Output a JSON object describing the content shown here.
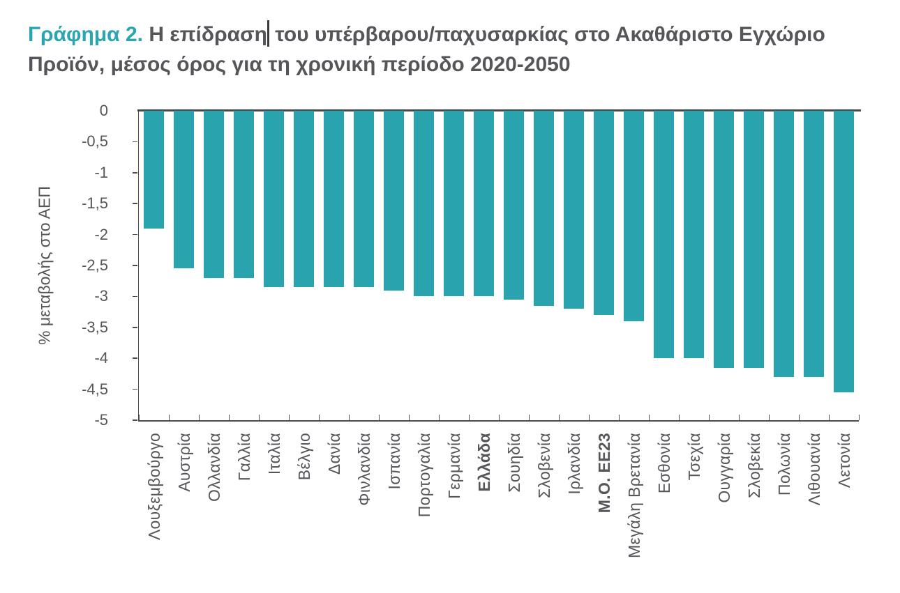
{
  "title": {
    "prefix": "Γράφημα 2.",
    "line1_before_caret": "Η επίδραση",
    "line1_after_caret": "του υπέρβαρου/παχυσαρκίας στο Ακαθάριστο Εγχώριο",
    "line2": "Προϊόν, μέσος όρος για τη χρονική περίοδο 2020-2050"
  },
  "colors": {
    "bar": "#29a4ae",
    "title_accent": "#2ba6b0",
    "text": "#55565a",
    "axis": "#4b4c4e"
  },
  "chart_data": {
    "type": "bar",
    "title": "Γράφημα 2. Η επίδραση του υπέρβαρου/παχυσαρκίας στο Ακαθάριστο Εγχώριο Προϊόν, μέσος όρος για τη χρονική περίοδο 2020-2050",
    "xlabel": "",
    "ylabel": "% μεταβολής στο ΑΕΠ",
    "ylim": [
      -5,
      0
    ],
    "y_tick_step": 0.5,
    "y_tick_labels": [
      "0",
      "-0,5",
      "-1",
      "-1,5",
      "-2",
      "-2,5",
      "-3",
      "-3,5",
      "-4",
      "-4,5",
      "-5"
    ],
    "grid": false,
    "legend": false,
    "bar_color": "#29a4ae",
    "categories": [
      "Λουξεμβούργο",
      "Αυστρία",
      "Ολλανδία",
      "Γαλλία",
      "Ιταλία",
      "Βέλγιο",
      "Δανία",
      "Φινλανδία",
      "Ισπανία",
      "Πορτογαλία",
      "Γερμανία",
      "Ελλάδα",
      "Σουηδία",
      "Σλοβενία",
      "Ιρλανδία",
      "Μ.Ο. ΕΕ23",
      "Μεγάλη Βρετανία",
      "Εσθονία",
      "Τσεχία",
      "Ουγγαρία",
      "Σλοβεκία",
      "Πολωνία",
      "Λιθουανία",
      "Λετονία"
    ],
    "values": [
      -1.9,
      -2.55,
      -2.7,
      -2.7,
      -2.85,
      -2.85,
      -2.85,
      -2.85,
      -2.9,
      -3.0,
      -3.0,
      -3.0,
      -3.05,
      -3.15,
      -3.2,
      -3.3,
      -3.4,
      -4.0,
      -4.0,
      -4.15,
      -4.15,
      -4.3,
      -4.3,
      -4.55
    ],
    "emphasized_categories": [
      "Ελλάδα",
      "Μ.Ο. ΕΕ23"
    ]
  }
}
